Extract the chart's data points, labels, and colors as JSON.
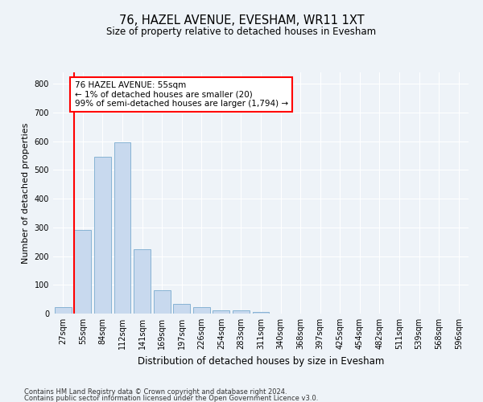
{
  "title": "76, HAZEL AVENUE, EVESHAM, WR11 1XT",
  "subtitle": "Size of property relative to detached houses in Evesham",
  "xlabel": "Distribution of detached houses by size in Evesham",
  "ylabel": "Number of detached properties",
  "bar_labels": [
    "27sqm",
    "55sqm",
    "84sqm",
    "112sqm",
    "141sqm",
    "169sqm",
    "197sqm",
    "226sqm",
    "254sqm",
    "283sqm",
    "311sqm",
    "340sqm",
    "368sqm",
    "397sqm",
    "425sqm",
    "454sqm",
    "482sqm",
    "511sqm",
    "539sqm",
    "568sqm",
    "596sqm"
  ],
  "bar_values": [
    22,
    290,
    547,
    596,
    224,
    80,
    33,
    22,
    12,
    10,
    6,
    0,
    0,
    0,
    0,
    0,
    0,
    0,
    0,
    0,
    0
  ],
  "highlight_bar_index": 1,
  "normal_color": "#c8d9ee",
  "bar_edge_color": "#7aabcf",
  "annotation_text": "76 HAZEL AVENUE: 55sqm\n← 1% of detached houses are smaller (20)\n99% of semi-detached houses are larger (1,794) →",
  "ylim": [
    0,
    840
  ],
  "yticks": [
    0,
    100,
    200,
    300,
    400,
    500,
    600,
    700,
    800
  ],
  "footer_line1": "Contains HM Land Registry data © Crown copyright and database right 2024.",
  "footer_line2": "Contains public sector information licensed under the Open Government Licence v3.0.",
  "bg_color": "#eef3f8",
  "grid_color": "#ffffff",
  "title_fontsize": 10.5,
  "subtitle_fontsize": 8.5,
  "ylabel_fontsize": 8,
  "xlabel_fontsize": 8.5,
  "tick_fontsize": 7,
  "annot_fontsize": 7.5,
  "footer_fontsize": 6
}
